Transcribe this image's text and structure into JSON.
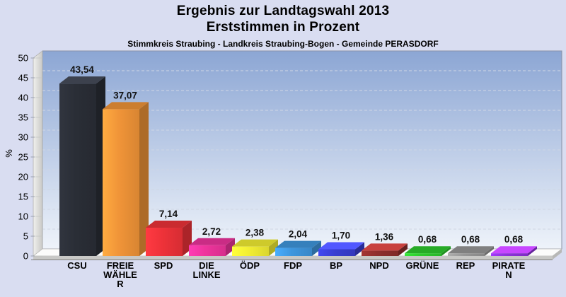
{
  "header": {
    "title_line1": "Ergebnis zur Landtagswahl 2013",
    "title_line2": "Erststimmen in Prozent",
    "subtitle": "Stimmkreis Straubing - Landkreis Straubing-Bogen - Gemeinde PERASDORF"
  },
  "chart_data": {
    "type": "bar",
    "style": "3d-column",
    "title": "Ergebnis zur Landtagswahl 2013 / Erststimmen in Prozent",
    "xlabel": "",
    "ylabel": "%",
    "ylim": [
      0,
      50
    ],
    "yticks": [
      0,
      5,
      10,
      15,
      20,
      25,
      30,
      35,
      40,
      45,
      50
    ],
    "grid": "horizontal-dashed",
    "legend": "none",
    "categories": [
      "CSU",
      "FREIE WÄHLER",
      "SPD",
      "DIE LINKE",
      "ÖDP",
      "FDP",
      "BP",
      "NPD",
      "GRÜNE",
      "REP",
      "PIRATEN"
    ],
    "category_label_lines": [
      [
        "CSU"
      ],
      [
        "FREIE",
        "WÄHLE",
        "R"
      ],
      [
        "SPD"
      ],
      [
        "DIE",
        "LINKE"
      ],
      [
        "ÖDP"
      ],
      [
        "FDP"
      ],
      [
        "BP"
      ],
      [
        "NPD"
      ],
      [
        "GRÜNE"
      ],
      [
        "REP"
      ],
      [
        "PIRATE",
        "N"
      ]
    ],
    "values": [
      43.54,
      37.07,
      7.14,
      2.72,
      2.38,
      2.04,
      1.7,
      1.36,
      0.68,
      0.68,
      0.68
    ],
    "value_labels": [
      "43,54",
      "37,07",
      "7,14",
      "2,72",
      "2,38",
      "2,04",
      "1,70",
      "1,36",
      "0,68",
      "0,68",
      "0,68"
    ],
    "bar_colors": [
      "#2a2e36",
      "#f09438",
      "#ee3239",
      "#ee349c",
      "#f2ee33",
      "#3e96dd",
      "#393ed0",
      "#8d2e2c",
      "#2ec92e",
      "#969696",
      "#8c32d9"
    ]
  },
  "colors": {
    "page_background": "#d9ddf1",
    "plot_gradient_top": "#8ca6d4",
    "plot_gradient_bottom": "#eef3fa",
    "plot_border": "#8a93a6",
    "gridline": "#d0d6e4",
    "wall_light": "#f0f0ee",
    "wall_dark": "#c9c9c6",
    "floor_top": "#fcfcfb",
    "floor_front": "#c8c8c6",
    "tick": "#9aa0ae",
    "text": "#000000"
  }
}
